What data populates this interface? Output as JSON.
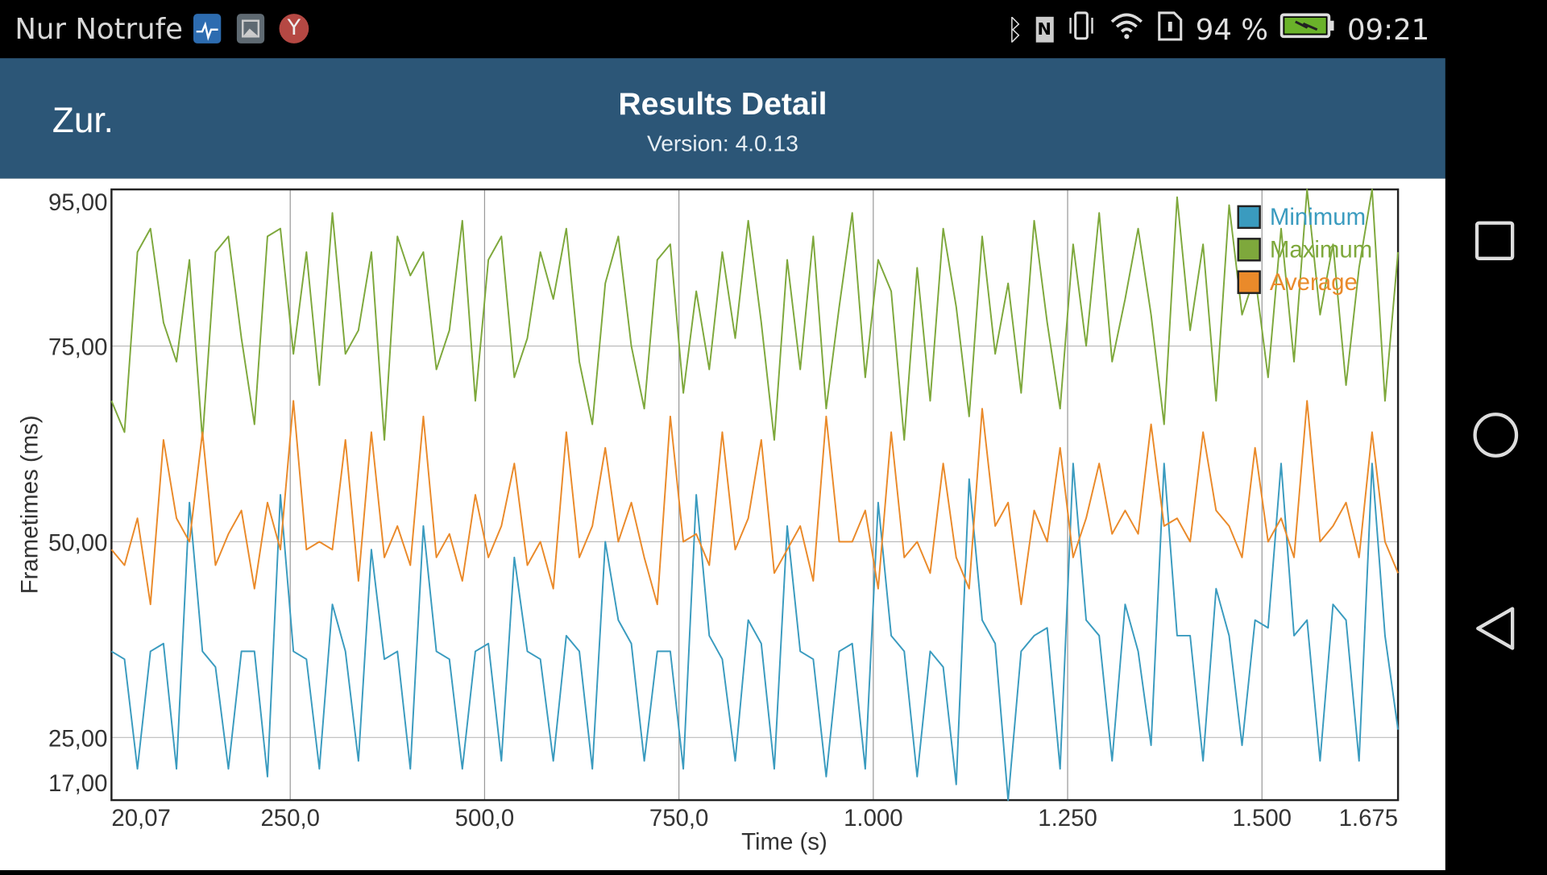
{
  "status_bar": {
    "carrier": "Nur Notrufe",
    "battery_percent": "94 %",
    "time": "09:21",
    "battery_level": 0.94,
    "icons": [
      "heart-monitor-icon",
      "gallery-icon",
      "yandex-icon",
      "bluetooth-icon",
      "nfc-icon",
      "vibrate-icon",
      "wifi-icon",
      "sim-icon",
      "battery-charging-icon"
    ]
  },
  "header": {
    "back_label": "Zur.",
    "title": "Results Detail",
    "subtitle": "Version: 4.0.13"
  },
  "nav_bar": {
    "icons": [
      "recents-square-icon",
      "home-circle-icon",
      "back-triangle-icon"
    ]
  },
  "colors": {
    "header": "#2c5677",
    "minimum": "#3a9bbf",
    "maximum": "#7ea83c",
    "average": "#ea8a2a"
  },
  "chart_data": {
    "type": "line",
    "xlabel": "Time (s)",
    "ylabel": "Frametimes (ms)",
    "xlim": [
      20.07,
      1675
    ],
    "ylim": [
      17,
      95
    ],
    "x_ticks": [
      {
        "v": 20.07,
        "label": "20,07"
      },
      {
        "v": 250,
        "label": "250,0"
      },
      {
        "v": 500,
        "label": "500,0"
      },
      {
        "v": 750,
        "label": "750,0"
      },
      {
        "v": 1000,
        "label": "1.000"
      },
      {
        "v": 1250,
        "label": "1.250"
      },
      {
        "v": 1500,
        "label": "1.500"
      },
      {
        "v": 1675,
        "label": "1.675"
      }
    ],
    "y_ticks": [
      {
        "v": 95,
        "label": "95,00"
      },
      {
        "v": 75,
        "label": "75,00"
      },
      {
        "v": 50,
        "label": "50,00"
      },
      {
        "v": 25,
        "label": "25,00"
      },
      {
        "v": 17,
        "label": "17,00"
      }
    ],
    "grid": true,
    "legend_position": "top-right",
    "series": [
      {
        "name": "Minimum",
        "color": "#3a9bbf",
        "values": [
          36,
          35,
          21,
          36,
          37,
          21,
          55,
          36,
          34,
          21,
          36,
          36,
          20,
          56,
          36,
          35,
          21,
          42,
          36,
          22,
          49,
          35,
          36,
          21,
          52,
          36,
          35,
          21,
          36,
          37,
          22,
          48,
          36,
          35,
          22,
          38,
          36,
          21,
          50,
          40,
          37,
          22,
          36,
          36,
          21,
          56,
          38,
          35,
          22,
          40,
          37,
          21,
          52,
          36,
          35,
          20,
          36,
          37,
          21,
          55,
          38,
          36,
          20,
          36,
          34,
          19,
          58,
          40,
          37,
          17,
          36,
          38,
          39,
          21,
          60,
          40,
          38,
          22,
          42,
          36,
          24,
          60,
          38,
          38,
          22,
          44,
          38,
          24,
          40,
          39,
          60,
          38,
          40,
          22,
          42,
          40,
          22,
          60,
          38,
          26
        ]
      },
      {
        "name": "Maximum",
        "color": "#7ea83c",
        "values": [
          68,
          64,
          87,
          90,
          78,
          73,
          86,
          63,
          87,
          89,
          76,
          65,
          89,
          90,
          74,
          87,
          70,
          92,
          74,
          77,
          87,
          63,
          89,
          84,
          87,
          72,
          77,
          91,
          68,
          86,
          89,
          71,
          76,
          87,
          81,
          90,
          73,
          65,
          83,
          89,
          75,
          67,
          86,
          88,
          69,
          82,
          72,
          87,
          76,
          91,
          78,
          63,
          86,
          72,
          89,
          67,
          80,
          92,
          71,
          86,
          82,
          63,
          85,
          68,
          90,
          80,
          66,
          89,
          74,
          83,
          69,
          91,
          78,
          67,
          88,
          75,
          92,
          73,
          81,
          90,
          79,
          65,
          94,
          77,
          88,
          68,
          93,
          79,
          84,
          71,
          90,
          73,
          95,
          79,
          88,
          70,
          85,
          95,
          68,
          87
        ]
      },
      {
        "name": "Average",
        "color": "#ea8a2a",
        "values": [
          49,
          47,
          53,
          42,
          63,
          53,
          50,
          64,
          47,
          51,
          54,
          44,
          55,
          49,
          68,
          49,
          50,
          49,
          63,
          45,
          64,
          48,
          52,
          47,
          66,
          48,
          51,
          45,
          56,
          48,
          52,
          60,
          47,
          50,
          44,
          64,
          48,
          52,
          62,
          50,
          55,
          48,
          42,
          66,
          50,
          51,
          47,
          64,
          49,
          53,
          63,
          46,
          49,
          52,
          45,
          66,
          50,
          50,
          54,
          44,
          64,
          48,
          50,
          46,
          60,
          48,
          44,
          67,
          52,
          55,
          42,
          54,
          50,
          62,
          48,
          53,
          60,
          51,
          54,
          51,
          65,
          52,
          53,
          50,
          64,
          54,
          52,
          48,
          62,
          50,
          53,
          48,
          68,
          50,
          52,
          55,
          48,
          64,
          50,
          46
        ]
      }
    ]
  }
}
